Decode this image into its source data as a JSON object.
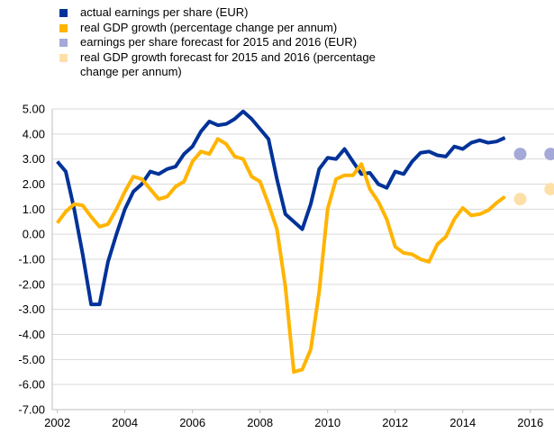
{
  "chart_data": {
    "type": "line",
    "xlim": [
      2001.85,
      2016.7
    ],
    "ylim": [
      -7,
      5
    ],
    "xticks": [
      2002,
      2004,
      2006,
      2008,
      2010,
      2012,
      2014,
      2016
    ],
    "yticks": [
      {
        "value": 5,
        "label": "5.00"
      },
      {
        "value": 4,
        "label": "4.00"
      },
      {
        "value": 3,
        "label": "3.00"
      },
      {
        "value": 2,
        "label": "2.00"
      },
      {
        "value": 1,
        "label": "1.00"
      },
      {
        "value": 0,
        "label": "0.00"
      },
      {
        "value": -1,
        "label": "-1.00"
      },
      {
        "value": -2,
        "label": "-2.00"
      },
      {
        "value": -3,
        "label": "-3.00"
      },
      {
        "value": -4,
        "label": "-4.00"
      },
      {
        "value": -5,
        "label": "-5.00"
      },
      {
        "value": -6,
        "label": "-6.00"
      },
      {
        "value": -7,
        "label": "-7.00"
      }
    ],
    "grid": true,
    "series": [
      {
        "name": "actual earnings per share (EUR)",
        "color": "#003299",
        "style": "line",
        "x": [
          2002,
          2002.25,
          2002.5,
          2002.75,
          2003,
          2003.25,
          2003.5,
          2003.75,
          2004,
          2004.25,
          2004.5,
          2004.75,
          2005,
          2005.25,
          2005.5,
          2005.75,
          2006,
          2006.25,
          2006.5,
          2006.75,
          2007,
          2007.25,
          2007.5,
          2007.75,
          2008,
          2008.25,
          2008.5,
          2008.75,
          2009,
          2009.25,
          2009.5,
          2009.75,
          2010,
          2010.25,
          2010.5,
          2010.75,
          2011,
          2011.25,
          2011.5,
          2011.75,
          2012,
          2012.25,
          2012.5,
          2012.75,
          2013,
          2013.25,
          2013.5,
          2013.75,
          2014,
          2014.25,
          2014.5,
          2014.75,
          2015,
          2015.25
        ],
        "values": [
          2.9,
          2.5,
          1.0,
          -0.8,
          -2.8,
          -2.8,
          -1.1,
          0.0,
          1.0,
          1.7,
          2.0,
          2.5,
          2.4,
          2.6,
          2.7,
          3.2,
          3.5,
          4.1,
          4.5,
          4.35,
          4.4,
          4.6,
          4.9,
          4.6,
          4.2,
          3.8,
          2.2,
          0.8,
          0.5,
          0.2,
          1.2,
          2.6,
          3.05,
          3.0,
          3.4,
          2.9,
          2.4,
          2.45,
          2.0,
          1.85,
          2.5,
          2.4,
          2.9,
          3.25,
          3.3,
          3.15,
          3.1,
          3.5,
          3.4,
          3.65,
          3.75,
          3.65,
          3.7,
          3.85
        ]
      },
      {
        "name": "real GDP growth (percentage change per annum)",
        "color": "#ffb400",
        "style": "line",
        "x": [
          2002,
          2002.25,
          2002.5,
          2002.75,
          2003,
          2003.25,
          2003.5,
          2003.75,
          2004,
          2004.25,
          2004.5,
          2004.75,
          2005,
          2005.25,
          2005.5,
          2005.75,
          2006,
          2006.25,
          2006.5,
          2006.75,
          2007,
          2007.25,
          2007.5,
          2007.75,
          2008,
          2008.25,
          2008.5,
          2008.75,
          2009,
          2009.25,
          2009.5,
          2009.75,
          2010,
          2010.25,
          2010.5,
          2010.75,
          2011,
          2011.25,
          2011.5,
          2011.75,
          2012,
          2012.25,
          2012.5,
          2012.75,
          2013,
          2013.25,
          2013.5,
          2013.75,
          2014,
          2014.25,
          2014.5,
          2014.75,
          2015,
          2015.25
        ],
        "values": [
          0.45,
          0.9,
          1.2,
          1.15,
          0.7,
          0.3,
          0.4,
          1.0,
          1.7,
          2.3,
          2.2,
          1.8,
          1.4,
          1.5,
          1.9,
          2.1,
          2.9,
          3.3,
          3.2,
          3.8,
          3.6,
          3.1,
          3.0,
          2.3,
          2.1,
          1.2,
          0.2,
          -2.1,
          -5.5,
          -5.4,
          -4.6,
          -2.3,
          1.0,
          2.2,
          2.35,
          2.35,
          2.8,
          1.8,
          1.3,
          0.6,
          -0.5,
          -0.75,
          -0.8,
          -1.0,
          -1.1,
          -0.4,
          -0.1,
          0.6,
          1.05,
          0.75,
          0.8,
          0.95,
          1.25,
          1.5
        ]
      },
      {
        "name": "earnings per share forecast for 2015 and 2016 (EUR)",
        "color": "#a4a9d8",
        "style": "dot",
        "x": [
          2015.7,
          2016.6
        ],
        "values": [
          3.2,
          3.2
        ]
      },
      {
        "name": "real GDP growth forecast for 2015 and 2016 (percentage change per annum)",
        "color": "#fde0a8",
        "style": "dot",
        "x": [
          2015.7,
          2016.6
        ],
        "values": [
          1.4,
          1.8
        ]
      }
    ]
  }
}
